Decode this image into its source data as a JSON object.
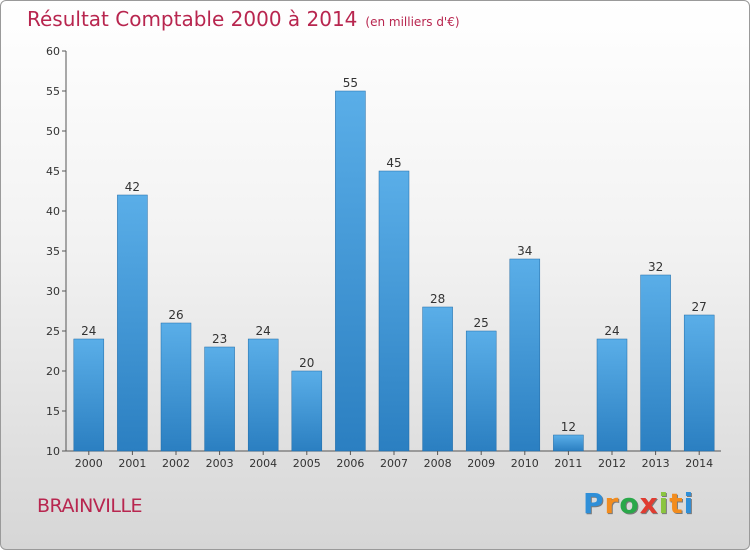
{
  "title": "Résultat Comptable 2000 à 2014",
  "subtitle": "(en milliers d'€)",
  "commune": "BRAINVILLE",
  "logo": {
    "letters": [
      "P",
      "r",
      "o",
      "x",
      "i",
      "t",
      "i"
    ],
    "colors": [
      "#2f8fd8",
      "#f28c1e",
      "#2aa84a",
      "#e03c31",
      "#8bc53f",
      "#f28c1e",
      "#2f8fd8"
    ]
  },
  "colors": {
    "title": "#b8264f",
    "bar_top": "#5aaee8",
    "bar_bottom": "#2b7fc1",
    "bar_edge": "#1f6aa6"
  },
  "chart_data": {
    "type": "bar",
    "title": "Résultat Comptable 2000 à 2014",
    "subtitle": "(en milliers d'€)",
    "categories": [
      "2000",
      "2001",
      "2002",
      "2003",
      "2004",
      "2005",
      "2006",
      "2007",
      "2008",
      "2009",
      "2010",
      "2011",
      "2012",
      "2013",
      "2014"
    ],
    "values": [
      24,
      42,
      26,
      23,
      24,
      20,
      55,
      45,
      28,
      25,
      34,
      12,
      24,
      32,
      27
    ],
    "ylim": [
      10,
      60
    ],
    "yticks": [
      10,
      15,
      20,
      25,
      30,
      35,
      40,
      45,
      50,
      55,
      60
    ],
    "xlabel": "",
    "ylabel": "",
    "grid": false
  }
}
